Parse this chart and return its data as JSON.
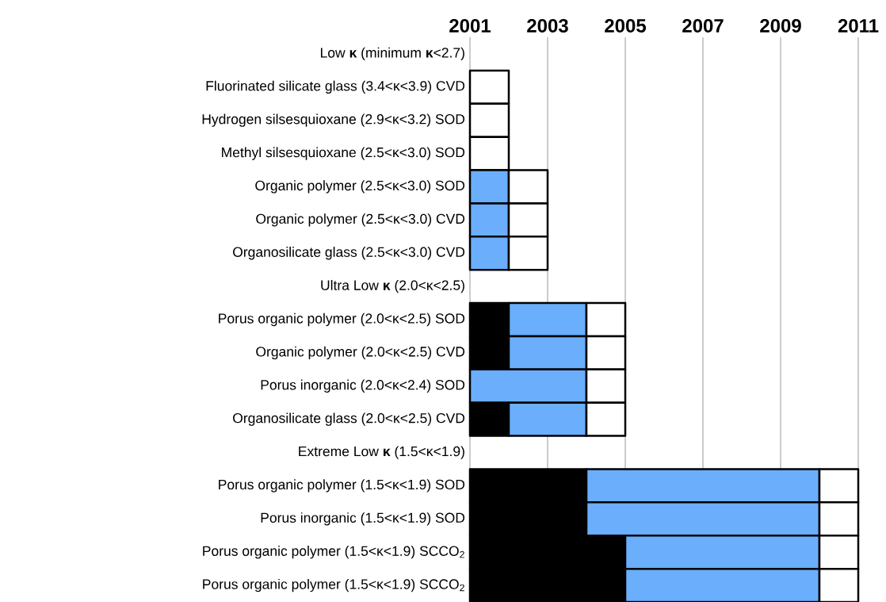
{
  "chart_data": {
    "type": "bar",
    "orientation": "horizontal",
    "categories": [
      "Low **κ** (minimum **κ**<2.7)",
      "Fluorinated silicate glass (3.4<κ<3.9) CVD",
      "Hydrogen silsesquioxane (2.9<κ<3.2) SOD",
      "Methyl silsesquioxane (2.5<κ<3.0) SOD",
      "Organic polymer (2.5<κ<3.0) SOD",
      "Organic polymer (2.5<κ<3.0) CVD",
      "Organosilicate glass (2.5<κ<3.0) CVD",
      "Ultra Low **κ** (2.0<κ<2.5)",
      "Porus organic polymer (2.0<κ<2.5) SOD",
      "Organic polymer (2.0<κ<2.5) CVD",
      "Porus inorganic (2.0<κ<2.4) SOD",
      "Organosilicate glass (2.0<κ<2.5) CVD",
      "Extreme Low **κ** (1.5<κ<1.9)",
      "Porus organic polymer (1.5<κ<1.9) SOD",
      "Porus inorganic (1.5<κ<1.9) SOD",
      "Porus organic polymer (1.5<κ<1.9) SCCO$_{2}$",
      "Porus organic polymer (1.5<κ<1.9) SCCO$_{2}$"
    ],
    "series": [
      {
        "color": "#000000",
        "base": [
          null,
          null,
          null,
          null,
          null,
          null,
          null,
          null,
          2001,
          2001,
          null,
          2001,
          null,
          2001,
          2001,
          2001,
          2001
        ],
        "values": [
          null,
          null,
          null,
          null,
          null,
          null,
          null,
          null,
          1,
          1,
          null,
          1,
          null,
          3,
          3,
          4,
          4
        ]
      },
      {
        "color": "#6aaefc",
        "base": [
          null,
          null,
          null,
          null,
          2001,
          2001,
          2001,
          null,
          2002,
          2002,
          2001,
          2002,
          null,
          2004,
          2004,
          2005,
          2005
        ],
        "values": [
          null,
          null,
          null,
          null,
          1,
          1,
          1,
          null,
          2,
          2,
          3,
          2,
          null,
          6,
          6,
          5,
          5
        ]
      },
      {
        "color": "#ffffff",
        "base": [
          null,
          2001,
          2001,
          2001,
          2002,
          2002,
          2002,
          null,
          2004,
          2004,
          2004,
          2004,
          null,
          2010,
          2010,
          2010,
          2010
        ],
        "values": [
          null,
          1,
          1,
          1,
          1,
          1,
          1,
          null,
          1,
          1,
          1,
          1,
          null,
          1,
          1,
          1,
          1
        ]
      }
    ],
    "xlim": [
      2001,
      2011
    ],
    "xticks": [
      2001,
      2003,
      2005,
      2007,
      2009,
      2011
    ],
    "grid": "x"
  }
}
